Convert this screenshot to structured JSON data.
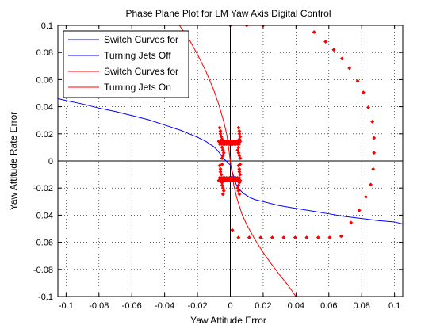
{
  "chart_data": {
    "type": "scatter",
    "title": "Phase Plane Plot for LM Yaw Axis Digital Control",
    "xlabel": "Yaw Attitude Error",
    "ylabel": "Yaw Attitude Rate Error",
    "xlim": [
      -0.105,
      0.105
    ],
    "ylim": [
      -0.1,
      0.1
    ],
    "xticks": [
      -0.1,
      -0.08,
      -0.06,
      -0.04,
      -0.02,
      0,
      0.02,
      0.04,
      0.06,
      0.08,
      0.1
    ],
    "xtick_labels": [
      "-0.1",
      "-0.08",
      "-0.06",
      "-0.04",
      "-0.02",
      "0",
      "0.02",
      "0.04",
      "0.06",
      "0.08",
      "0.1"
    ],
    "yticks": [
      -0.1,
      -0.08,
      -0.06,
      -0.04,
      -0.02,
      0,
      0.02,
      0.04,
      0.06,
      0.08,
      0.1
    ],
    "ytick_labels": [
      "-0.1",
      "-0.08",
      "-0.06",
      "-0.04",
      "-0.02",
      "0",
      "0.02",
      "0.04",
      "0.06",
      "0.08",
      "0.1"
    ],
    "grid": true,
    "legend_position": "top-left",
    "legend": [
      {
        "label": "Switch Curves for",
        "color": "#0000ff"
      },
      {
        "label": "Turning Jets Off",
        "color": "#0000ff"
      },
      {
        "label": "Switch Curves for",
        "color": "#ff0000"
      },
      {
        "label": "Turning Jets On",
        "color": "#ff0000"
      }
    ],
    "series": [
      {
        "type": "line",
        "color": "#0000ff",
        "x": [
          -0.105,
          -0.1,
          -0.09,
          -0.08,
          -0.07,
          -0.06,
          -0.05,
          -0.04,
          -0.03,
          -0.025,
          -0.02,
          -0.015,
          -0.012,
          -0.01,
          -0.008,
          -0.006,
          -0.005,
          -0.004,
          -0.003,
          0.0,
          0.003,
          0.004,
          0.005,
          0.006,
          0.008,
          0.01,
          0.012,
          0.015,
          0.02,
          0.025,
          0.03,
          0.04,
          0.05,
          0.06,
          0.07,
          0.08,
          0.09,
          0.1,
          0.105
        ],
        "y": [
          0.046,
          0.0445,
          0.042,
          0.039,
          0.0365,
          0.0335,
          0.0305,
          0.0265,
          0.0225,
          0.02,
          0.0175,
          0.0145,
          0.012,
          0.0105,
          0.008,
          0.005,
          0.003,
          0.0015,
          0.0005,
          -0.003,
          -0.0155,
          -0.0185,
          -0.02,
          -0.0215,
          -0.024,
          -0.0255,
          -0.027,
          -0.0285,
          -0.03,
          -0.0315,
          -0.033,
          -0.035,
          -0.037,
          -0.039,
          -0.041,
          -0.0425,
          -0.044,
          -0.045,
          -0.0465
        ]
      },
      {
        "type": "line",
        "color": "#ff0000",
        "x": [
          -0.031,
          -0.025,
          -0.02,
          -0.015,
          -0.01,
          -0.007,
          -0.004,
          -0.002,
          0.0,
          0.002,
          0.004,
          0.007,
          0.01,
          0.015,
          0.02,
          0.025,
          0.03,
          0.035,
          0.04
        ],
        "y": [
          0.1,
          0.0895,
          0.0785,
          0.0665,
          0.052,
          0.0415,
          0.029,
          0.0185,
          0.0,
          -0.0175,
          -0.0275,
          -0.039,
          -0.047,
          -0.058,
          -0.0675,
          -0.076,
          -0.084,
          -0.0915,
          -0.1
        ]
      },
      {
        "type": "scatter",
        "color": "#ff0000",
        "marker": "diamond",
        "x": [
          0.0,
          0.01,
          0.02,
          0.051,
          0.058,
          0.063,
          0.068,
          0.0725,
          0.0775,
          0.081,
          0.084,
          0.0865,
          0.0875,
          0.0875,
          0.087,
          0.0855,
          0.0825,
          0.0785,
          0.0735,
          0.0675,
          0.0605,
          0.0535,
          0.0465,
          0.0395,
          0.0325,
          0.0255,
          0.0185,
          0.0115,
          0.005,
          0.0012,
          -0.007,
          -0.006,
          -0.005,
          -0.004,
          -0.003,
          -0.002,
          -0.001,
          0.0,
          0.001,
          0.002,
          0.003,
          0.004,
          0.005,
          0.006,
          -0.0065,
          -0.0055,
          -0.0045,
          -0.0035,
          -0.0025,
          -0.0015,
          -0.0005,
          0.0005,
          0.0015,
          0.0025,
          0.0035,
          0.0045,
          0.0055,
          -0.0065,
          -0.006,
          -0.006,
          -0.0055,
          -0.005,
          -0.005,
          -0.0045,
          -0.004,
          -0.0045,
          -0.005,
          0.005,
          0.0055,
          0.0055,
          0.006,
          0.0055,
          0.005,
          0.0045,
          0.005,
          0.0055,
          0.006,
          -0.0065,
          -0.006,
          -0.006,
          -0.0055,
          -0.005,
          -0.005,
          -0.0045,
          -0.004,
          -0.0045,
          -0.005,
          0.005,
          0.0055,
          0.0055,
          0.006,
          0.0055,
          0.005,
          0.0045,
          0.005,
          0.0055,
          0.006,
          -0.007,
          -0.006,
          -0.005,
          -0.004,
          -0.003,
          -0.002,
          -0.001,
          0.0,
          0.001,
          0.002,
          0.003,
          0.004,
          0.005,
          0.006,
          -0.0065,
          -0.0055,
          -0.0045,
          -0.0035,
          -0.0025,
          -0.0015,
          -0.0005,
          0.0005,
          0.0015,
          0.0025,
          0.0035,
          0.0045,
          0.0055
        ],
        "y": [
          0.1,
          0.1,
          0.1,
          0.095,
          0.088,
          0.082,
          0.0755,
          0.0685,
          0.059,
          0.0505,
          0.0395,
          0.029,
          0.017,
          0.006,
          -0.006,
          -0.0175,
          -0.0265,
          -0.0365,
          -0.0455,
          -0.0555,
          -0.0565,
          -0.0565,
          -0.0565,
          -0.0565,
          -0.0565,
          -0.0565,
          -0.0565,
          -0.0565,
          -0.0565,
          -0.051,
          0.0145,
          0.0145,
          0.0145,
          0.0145,
          0.0145,
          0.0145,
          0.0145,
          0.0145,
          0.0145,
          0.0145,
          0.0145,
          0.0145,
          0.0145,
          0.0145,
          0.0125,
          0.0125,
          0.0125,
          0.0125,
          0.0125,
          0.0125,
          0.0125,
          0.0125,
          0.0125,
          0.0125,
          0.0125,
          0.0125,
          0.0125,
          0.0245,
          0.022,
          0.02,
          0.018,
          0.016,
          0.01,
          0.008,
          0.006,
          0.004,
          0.002,
          0.0245,
          0.022,
          0.02,
          0.018,
          0.016,
          0.01,
          0.008,
          0.006,
          0.004,
          0.002,
          -0.0035,
          -0.006,
          -0.008,
          -0.01,
          -0.016,
          -0.018,
          -0.02,
          -0.022,
          -0.0245,
          -0.0025,
          -0.0035,
          -0.006,
          -0.008,
          -0.01,
          -0.016,
          -0.018,
          -0.02,
          -0.022,
          -0.0245,
          -0.0025,
          -0.0145,
          -0.0145,
          -0.0145,
          -0.0145,
          -0.0145,
          -0.0145,
          -0.0145,
          -0.0145,
          -0.0145,
          -0.0145,
          -0.0145,
          -0.0145,
          -0.0145,
          -0.0145,
          -0.0125,
          -0.0125,
          -0.0125,
          -0.0125,
          -0.0125,
          -0.0125,
          -0.0125,
          -0.0125,
          -0.0125,
          -0.0125,
          -0.0125,
          -0.0125,
          -0.0125
        ]
      }
    ]
  }
}
